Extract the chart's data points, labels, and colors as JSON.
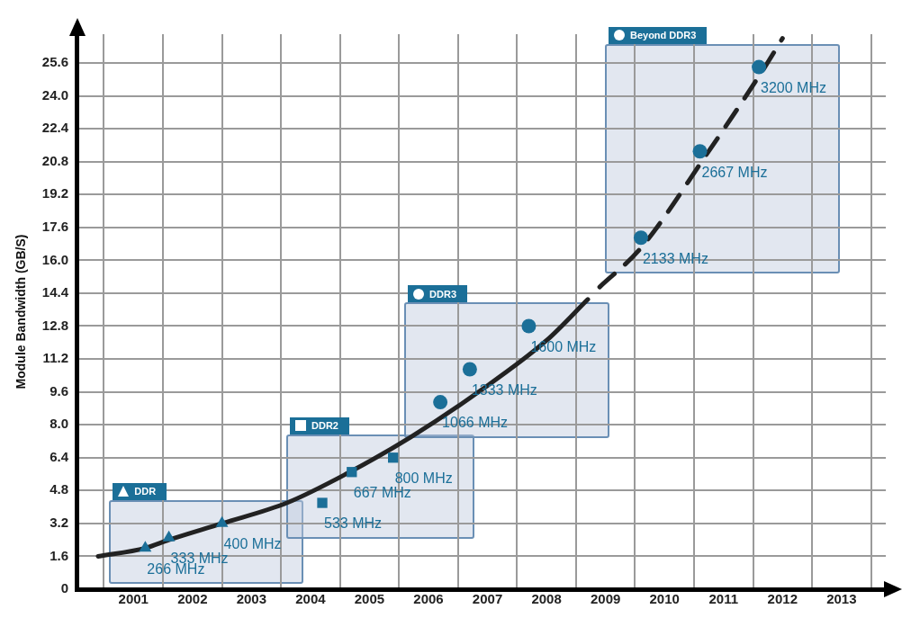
{
  "chart_data": {
    "type": "scatter",
    "ylabel": "Module Bandwidth (GB/S)",
    "xlim": [
      2000.05,
      2013.75
    ],
    "ylim": [
      0,
      27
    ],
    "xticks": [
      {
        "value": 2000.5,
        "label": null
      },
      {
        "value": 2001,
        "label": "2001"
      },
      {
        "value": 2001.5,
        "label": null
      },
      {
        "value": 2002,
        "label": "2002"
      },
      {
        "value": 2002.5,
        "label": null
      },
      {
        "value": 2003,
        "label": "2003"
      },
      {
        "value": 2003.5,
        "label": null
      },
      {
        "value": 2004,
        "label": "2004"
      },
      {
        "value": 2004.5,
        "label": null
      },
      {
        "value": 2005,
        "label": "2005"
      },
      {
        "value": 2005.5,
        "label": null
      },
      {
        "value": 2006,
        "label": "2006"
      },
      {
        "value": 2006.5,
        "label": null
      },
      {
        "value": 2007,
        "label": "2007"
      },
      {
        "value": 2007.5,
        "label": null
      },
      {
        "value": 2008,
        "label": "2008"
      },
      {
        "value": 2008.5,
        "label": null
      },
      {
        "value": 2009,
        "label": "2009"
      },
      {
        "value": 2009.5,
        "label": null
      },
      {
        "value": 2010,
        "label": "2010"
      },
      {
        "value": 2010.5,
        "label": null
      },
      {
        "value": 2011,
        "label": "2011"
      },
      {
        "value": 2011.5,
        "label": null
      },
      {
        "value": 2012,
        "label": "2012"
      },
      {
        "value": 2012.5,
        "label": null
      },
      {
        "value": 2013,
        "label": "2013"
      },
      {
        "value": 2013.5,
        "label": null
      }
    ],
    "yticks": [
      0,
      {
        "value": 1.6,
        "label": "1.6"
      },
      {
        "value": 3.2,
        "label": "3.2"
      },
      {
        "value": 4.8,
        "label": "4.8"
      },
      {
        "value": 6.4,
        "label": "6.4"
      },
      {
        "value": 8.0,
        "label": "8.0"
      },
      {
        "value": 9.6,
        "label": "9.6"
      },
      {
        "value": 11.2,
        "label": "11.2"
      },
      {
        "value": 12.8,
        "label": "12.8"
      },
      {
        "value": 14.4,
        "label": "14.4"
      },
      {
        "value": 16.0,
        "label": "16.0"
      },
      {
        "value": 17.6,
        "label": "17.6"
      },
      {
        "value": 19.2,
        "label": "19.2"
      },
      {
        "value": 20.8,
        "label": "20.8"
      },
      {
        "value": 22.4,
        "label": "22.4"
      },
      {
        "value": 24.0,
        "label": "24.0"
      },
      {
        "value": 25.6,
        "label": "25.6"
      }
    ],
    "grid": true,
    "legend": false,
    "series": [
      {
        "type": "line",
        "color": "#222222",
        "line_style": "solid",
        "marker": "none",
        "x": [
          2000.4,
          2001.2,
          2001.6,
          2002.5,
          2003.6,
          2004.6,
          2005.7,
          2006.9,
          2008.0,
          2008.7
        ],
        "values": [
          1.6,
          2.0,
          2.4,
          3.2,
          4.2,
          5.6,
          7.4,
          9.7,
          12.1,
          14.1
        ]
      },
      {
        "type": "line",
        "color": "#222222",
        "line_style": "dashed",
        "marker": "none",
        "x": [
          2008.9,
          2009.6,
          2010.7,
          2011.7,
          2012.0
        ],
        "values": [
          14.7,
          16.6,
          21.1,
          25.4,
          26.8
        ]
      },
      {
        "name": "DDR",
        "color": "#1b6f98",
        "marker": "triangle",
        "x": [
          2001.2,
          2001.6,
          2002.5
        ],
        "values": [
          2.0,
          2.5,
          3.2
        ]
      },
      {
        "name": "DDR2",
        "color": "#1b6f98",
        "marker": "square",
        "x": [
          2004.2,
          2004.7,
          2005.4
        ],
        "values": [
          4.2,
          5.7,
          6.4
        ]
      },
      {
        "name": "DDR3",
        "color": "#1b6f98",
        "marker": "circle",
        "x": [
          2006.2,
          2006.7,
          2007.7
        ],
        "values": [
          9.1,
          10.7,
          12.8
        ]
      },
      {
        "name": "Beyond DDR3",
        "color": "#1b6f98",
        "marker": "circle",
        "x": [
          2009.6,
          2010.6,
          2011.6
        ],
        "values": [
          17.1,
          21.3,
          25.4
        ]
      }
    ],
    "annotations": [
      {
        "text": "266 MHz",
        "x": 2001.2,
        "y": 2.0
      },
      {
        "text": "333 MHz",
        "x": 2001.6,
        "y": 2.5
      },
      {
        "text": "400 MHz",
        "x": 2002.5,
        "y": 3.2
      },
      {
        "text": "533 MHz",
        "x": 2004.2,
        "y": 4.2
      },
      {
        "text": "667 MHz",
        "x": 2004.7,
        "y": 5.7
      },
      {
        "text": "800 MHz",
        "x": 2005.4,
        "y": 6.4
      },
      {
        "text": "1066 MHz",
        "x": 2006.2,
        "y": 9.1
      },
      {
        "text": "1333 MHz",
        "x": 2006.7,
        "y": 10.7
      },
      {
        "text": "1600 MHz",
        "x": 2007.7,
        "y": 12.8
      },
      {
        "text": "2133 MHz",
        "x": 2009.6,
        "y": 17.1
      },
      {
        "text": "2667 MHz",
        "x": 2010.6,
        "y": 21.3
      },
      {
        "text": "3200 MHz",
        "x": 2011.6,
        "y": 25.4
      }
    ]
  }
}
